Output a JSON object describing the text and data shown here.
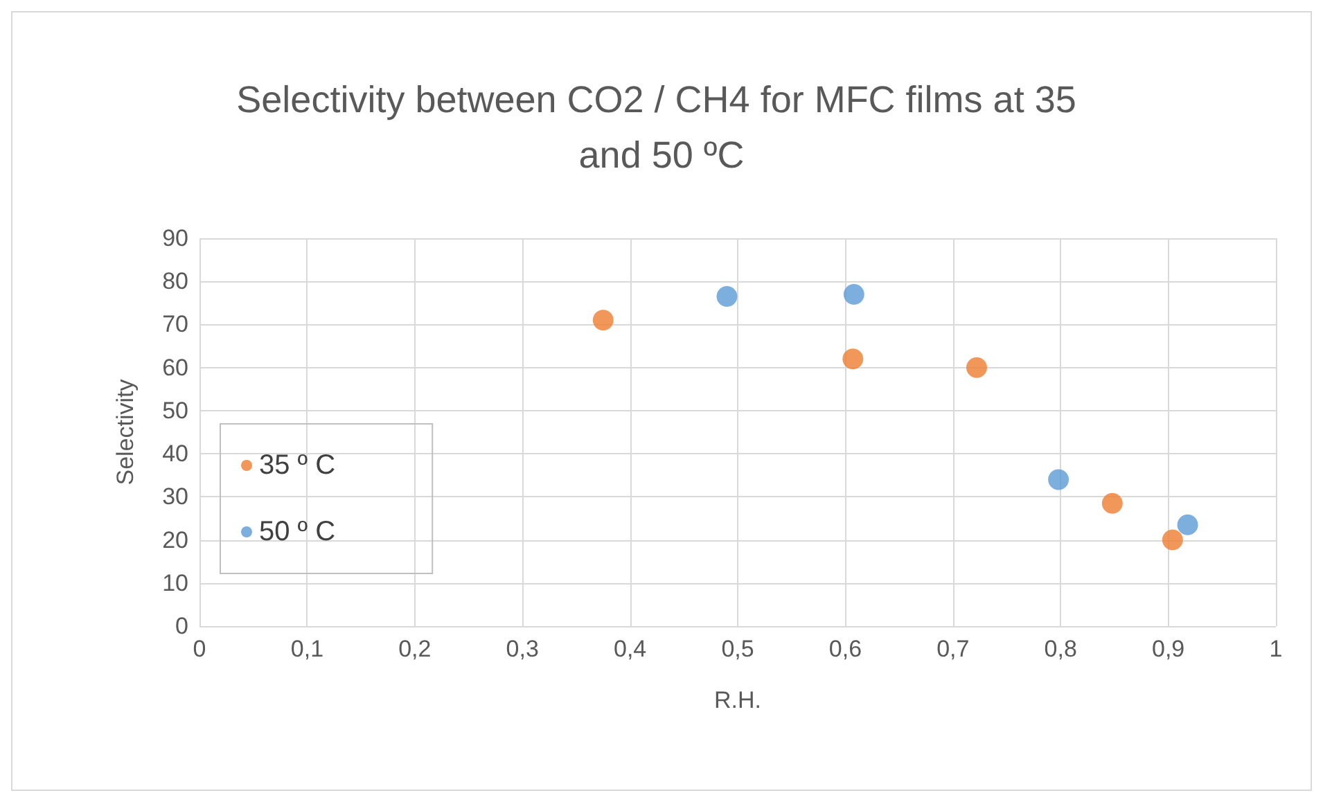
{
  "chart_data": {
    "type": "scatter",
    "title": "Selectivity between CO2 / CH4 for MFC films at 35 and 50 ºC",
    "xlabel": "R.H.",
    "ylabel": "Selectivity",
    "series": [
      {
        "name": "35 º C",
        "color": "#ed7d31",
        "x": [
          0.375,
          0.607,
          0.722,
          0.848,
          0.904
        ],
        "values": [
          71,
          62,
          60,
          28.5,
          20
        ]
      },
      {
        "name": "50 º C",
        "color": "#5b9bd5",
        "x": [
          0.49,
          0.608,
          0.798,
          0.918
        ],
        "values": [
          76.5,
          77,
          34,
          23.5
        ]
      }
    ],
    "xlim": [
      0,
      1
    ],
    "xticks": [
      {
        "value": 0,
        "label": "0"
      },
      {
        "value": 0.1,
        "label": "0,1"
      },
      {
        "value": 0.2,
        "label": "0,2"
      },
      {
        "value": 0.3,
        "label": "0,3"
      },
      {
        "value": 0.4,
        "label": "0,4"
      },
      {
        "value": 0.5,
        "label": "0,5"
      },
      {
        "value": 0.6,
        "label": "0,6"
      },
      {
        "value": 0.7,
        "label": "0,7"
      },
      {
        "value": 0.8,
        "label": "0,8"
      },
      {
        "value": 0.9,
        "label": "0,9"
      },
      {
        "value": 1,
        "label": "1"
      }
    ],
    "ylim": [
      0,
      90
    ],
    "yticks": [
      0,
      10,
      20,
      30,
      40,
      50,
      60,
      70,
      80,
      90
    ],
    "grid": true,
    "legend": "center left",
    "marker": "circle"
  }
}
